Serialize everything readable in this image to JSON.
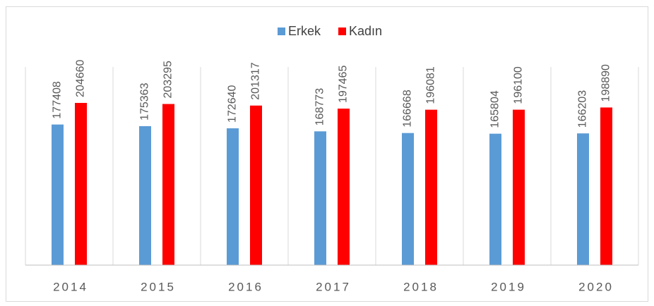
{
  "chart_data": {
    "type": "bar",
    "categories": [
      "2014",
      "2015",
      "2016",
      "2017",
      "2018",
      "2019",
      "2020"
    ],
    "series": [
      {
        "name": "Erkek",
        "color": "#5b9bd5",
        "values": [
          177408,
          175363,
          172640,
          168773,
          166668,
          165804,
          166203
        ]
      },
      {
        "name": "Kadın",
        "color": "#ff0000",
        "values": [
          204660,
          203295,
          201317,
          197465,
          196081,
          196100,
          198890
        ]
      }
    ],
    "ylim": [
      0,
      250000
    ],
    "legend": "top"
  }
}
